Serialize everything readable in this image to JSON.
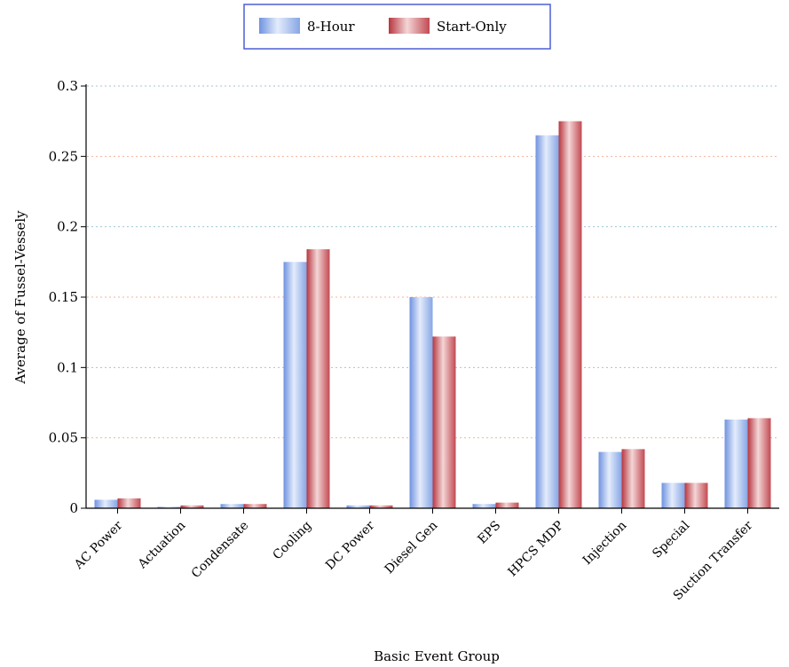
{
  "chart_data": {
    "type": "bar",
    "title": "",
    "xlabel": "Basic Event Group",
    "ylabel": "Average of Fussel-Vessely",
    "ylim": [
      0,
      0.3
    ],
    "yticks": [
      0,
      0.05,
      0.1,
      0.15,
      0.2,
      0.25,
      0.3
    ],
    "ytick_labels": [
      "0",
      "0.05",
      "0.1",
      "0.15",
      "0.2",
      "0.25",
      "0.3"
    ],
    "grid": true,
    "legend_position": "top-center",
    "categories": [
      "AC Power",
      "Actuation",
      "Condensate",
      "Cooling",
      "DC Power",
      "Diesel Gen",
      "EPS",
      "HPCS MDP",
      "Injection",
      "Special",
      "Suction Transfer"
    ],
    "series": [
      {
        "name": "8-Hour",
        "color": "#8eaee8",
        "values": [
          0.006,
          0.001,
          0.003,
          0.175,
          0.002,
          0.15,
          0.003,
          0.265,
          0.04,
          0.018,
          0.063
        ]
      },
      {
        "name": "Start-Only",
        "color": "#c8555c",
        "values": [
          0.007,
          0.002,
          0.003,
          0.184,
          0.002,
          0.122,
          0.004,
          0.275,
          0.042,
          0.018,
          0.064
        ]
      }
    ]
  }
}
